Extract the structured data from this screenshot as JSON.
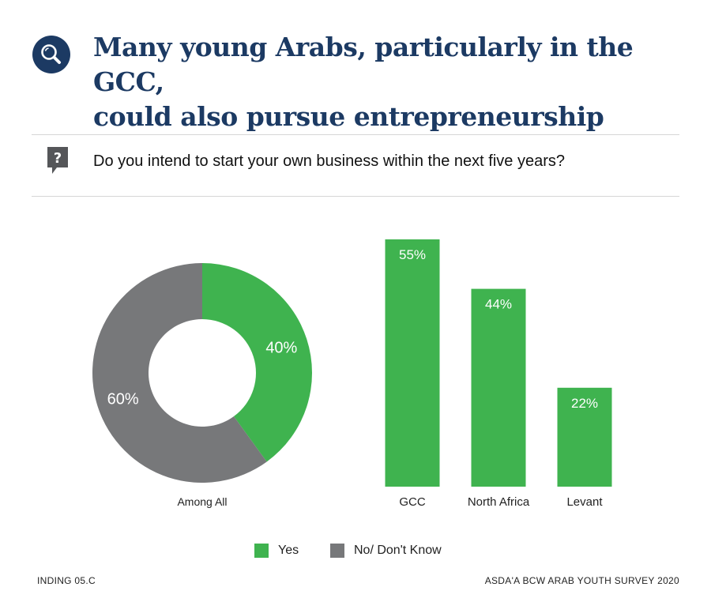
{
  "header": {
    "title_line1": "Many young Arabs, particularly in the GCC,",
    "title_line2": "could also pursue entrepreneurship",
    "title_icon": "magnifier-icon"
  },
  "question": {
    "icon": "question-bubble-icon",
    "text": "Do you intend to start your own business within the next five years?"
  },
  "colors": {
    "yes": "#3fb34f",
    "no": "#77787a",
    "title": "#1c3a63"
  },
  "chart_data": [
    {
      "type": "pie",
      "style": "donut",
      "label": "Among All",
      "slices": [
        {
          "name": "Yes",
          "value": 40,
          "label": "40%"
        },
        {
          "name": "No/ Don't Know",
          "value": 60,
          "label": "60%"
        }
      ]
    },
    {
      "type": "bar",
      "categories": [
        "GCC",
        "North Africa",
        "Levant"
      ],
      "series": [
        {
          "name": "Yes",
          "values": [
            55,
            44,
            22
          ],
          "labels": [
            "55%",
            "44%",
            "22%"
          ]
        }
      ],
      "ylim": [
        0,
        55
      ]
    }
  ],
  "legend": [
    {
      "name": "Yes",
      "color": "#3fb34f"
    },
    {
      "name": "No/ Don't Know",
      "color": "#77787a"
    }
  ],
  "footer": {
    "left": "INDING 05.C",
    "right": "ASDA'A BCW ARAB YOUTH SURVEY 2020"
  }
}
